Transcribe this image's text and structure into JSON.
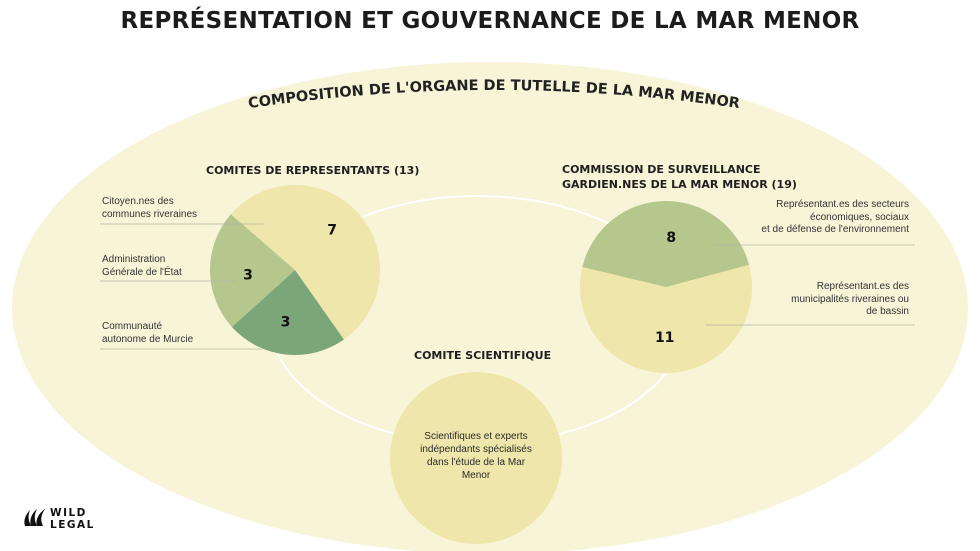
{
  "title": "REPRÉSENTATION ET GOUVERNANCE DE LA MAR MENOR",
  "subtitle": "COMPOSITION DE L'ORGANE DE TUTELLE DE LA MAR MENOR",
  "colors": {
    "background_ellipse": "#f7f4d8",
    "pale_yellow": "#efe6ab",
    "light_green": "#b5c78c",
    "dark_green": "#7aa67a",
    "line": "#b5b5a5"
  },
  "chart_data": [
    {
      "type": "pie",
      "title": "COMITES DE REPRESENTANTS (13)",
      "categories": [
        "Citoyen.nes des communes riveraines",
        "Administration Générale de l'État",
        "Communauté autonome de Murcie"
      ],
      "values": [
        7,
        3,
        3
      ],
      "value_labels": [
        "7",
        "3",
        "3"
      ],
      "colors": [
        "#efe6ab",
        "#7aa67a",
        "#b5c78c"
      ]
    },
    {
      "type": "pie",
      "title": "COMMISSION DE SURVEILLANCE GARDIEN.NES DE LA MAR MENOR (19)",
      "categories": [
        "Représentant.es des secteurs économiques, sociaux et de défense de l'environnement",
        "Représentant.es des municipalités riveraines ou de bassin"
      ],
      "values": [
        11,
        8
      ],
      "value_labels": [
        "11",
        "8"
      ],
      "colors": [
        "#efe6ab",
        "#b5c78c"
      ]
    }
  ],
  "left": {
    "heading": "COMITES DE REPRESENTANTS (13)",
    "labels": [
      {
        "line1": "Citoyen.nes des",
        "line2": "communes riveraines"
      },
      {
        "line1": "Administration",
        "line2": "Générale de l'État"
      },
      {
        "line1": "Communauté",
        "line2": "autonome de Murcie"
      }
    ]
  },
  "right": {
    "heading_line1": "COMMISSION DE SURVEILLANCE",
    "heading_line2": "GARDIEN.NES DE LA MAR MENOR (19)",
    "labels": [
      {
        "line1": "Représentant.es des secteurs",
        "line2": "économiques, sociaux",
        "line3": "et de défense de l'environnement"
      },
      {
        "line1": "Représentant.es des",
        "line2": "municipalités riveraines ou",
        "line3": "de bassin"
      }
    ]
  },
  "scientific": {
    "heading": "COMITE SCIENTIFIQUE",
    "text_line1": "Scientifiques et experts",
    "text_line2": "indépendants spécialisés",
    "text_line3": "dans l'étude de la Mar",
    "text_line4": "Menor"
  },
  "logo": {
    "icon": "wave-logo-icon",
    "line1": "WILD",
    "line2": "LEGAL"
  }
}
